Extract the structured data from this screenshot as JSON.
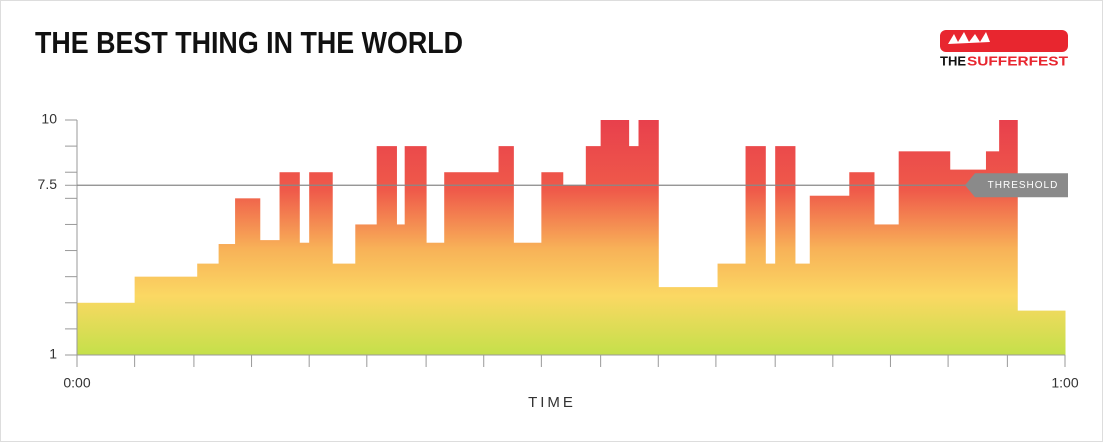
{
  "chart_data": {
    "type": "step-area",
    "title": "THE BEST THING IN THE WORLD",
    "logo": [
      "THE",
      "SUFFERFEST"
    ],
    "xlabel": "TIME",
    "x": [
      0,
      3.5,
      7.3,
      8.6,
      9.6,
      11.1,
      12.3,
      13.5,
      14.1,
      15.5,
      16.9,
      18.2,
      19.4,
      19.9,
      21.2,
      22.3,
      25.6,
      26.5,
      28.2,
      29.5,
      30.9,
      31.8,
      33.5,
      34.1,
      35.3,
      38.9,
      40.6,
      41.8,
      42.4,
      43.6,
      44.5,
      46.9,
      48.4,
      49.9,
      53.0,
      55.2,
      56.0,
      57.1
    ],
    "values": [
      3.0,
      4.0,
      4.5,
      5.25,
      7.0,
      5.4,
      8.0,
      5.3,
      8.0,
      4.5,
      6.0,
      9.0,
      6.0,
      9.0,
      5.3,
      8.0,
      9.0,
      5.3,
      8.0,
      7.5,
      9.0,
      10,
      9.0,
      10,
      3.6,
      4.5,
      9.0,
      4.5,
      9.0,
      4.5,
      7.1,
      8.0,
      6.0,
      8.8,
      8.1,
      8.8,
      10,
      2.7
    ],
    "xlim": [
      0,
      60
    ],
    "xticks": [
      {
        "value": 0,
        "label": "0:00"
      },
      {
        "value": 60,
        "label": "1:00"
      }
    ],
    "minor_xticks": [
      3.5,
      7.1,
      10.6,
      14.1,
      17.6,
      21.2,
      24.7,
      28.2,
      31.8,
      35.3,
      38.8,
      42.4,
      45.9,
      49.4,
      52.9,
      56.5
    ],
    "ylim": [
      1,
      10
    ],
    "yticks": [
      1,
      7.5,
      10
    ],
    "minor_yticks": [
      2,
      3,
      4,
      5,
      6,
      7,
      8,
      9
    ],
    "threshold": {
      "value": 7.5,
      "label": "THRESHOLD"
    }
  }
}
